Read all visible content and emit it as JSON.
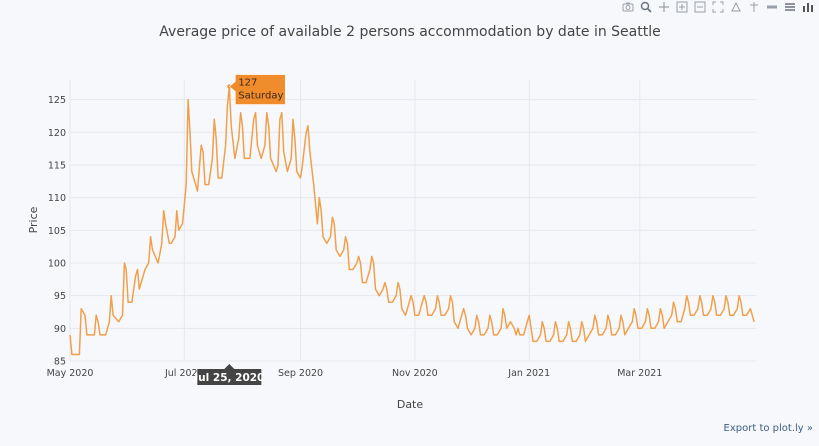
{
  "toolbar": {
    "icons": [
      "camera-icon",
      "zoom-icon",
      "pan-icon",
      "zoom-in-icon",
      "zoom-out-icon",
      "autoscale-icon",
      "reset-axes-icon",
      "spike-lines-icon",
      "hover-closest-icon",
      "hover-compare-icon",
      "plotly-logo-icon"
    ]
  },
  "export_label": "Export to plot.ly »",
  "colors": {
    "line": "#f0a04b",
    "hover_box": "#f08c2b",
    "hover_date_bg": "#444444",
    "background": "#f7f8fb"
  },
  "chart_data": {
    "type": "line",
    "title": "Average price of available 2 persons accommodation by date in Seattle",
    "xlabel": "Date",
    "ylabel": "Price",
    "x_range": [
      "2020-05-01",
      "2021-05-02"
    ],
    "ylim": [
      85,
      128
    ],
    "y_ticks": [
      85,
      90,
      95,
      100,
      105,
      110,
      115,
      120,
      125
    ],
    "x_ticks": [
      {
        "date": "2020-05-01",
        "label": "May 2020"
      },
      {
        "date": "2020-07-01",
        "label": "Jul 2020"
      },
      {
        "date": "2020-09-01",
        "label": "Sep 2020"
      },
      {
        "date": "2020-11-01",
        "label": "Nov 2020"
      },
      {
        "date": "2021-01-01",
        "label": "Jan 2021"
      },
      {
        "date": "2021-03-01",
        "label": "Mar 2021"
      }
    ],
    "grid": true,
    "series": [
      {
        "points": [
          [
            "2020-05-01",
            89
          ],
          [
            "2020-05-02",
            86
          ],
          [
            "2020-05-04",
            86
          ],
          [
            "2020-05-06",
            86
          ],
          [
            "2020-05-07",
            93
          ],
          [
            "2020-05-09",
            92
          ],
          [
            "2020-05-10",
            89
          ],
          [
            "2020-05-12",
            89
          ],
          [
            "2020-05-14",
            89
          ],
          [
            "2020-05-15",
            92
          ],
          [
            "2020-05-16",
            91
          ],
          [
            "2020-05-17",
            89
          ],
          [
            "2020-05-20",
            89
          ],
          [
            "2020-05-22",
            91
          ],
          [
            "2020-05-23",
            95
          ],
          [
            "2020-05-24",
            92
          ],
          [
            "2020-05-27",
            91
          ],
          [
            "2020-05-29",
            92
          ],
          [
            "2020-05-30",
            100
          ],
          [
            "2020-05-31",
            99
          ],
          [
            "2020-06-01",
            94
          ],
          [
            "2020-06-03",
            94
          ],
          [
            "2020-06-05",
            98
          ],
          [
            "2020-06-06",
            99
          ],
          [
            "2020-06-07",
            96
          ],
          [
            "2020-06-10",
            99
          ],
          [
            "2020-06-12",
            100
          ],
          [
            "2020-06-13",
            104
          ],
          [
            "2020-06-14",
            102
          ],
          [
            "2020-06-17",
            100
          ],
          [
            "2020-06-19",
            103
          ],
          [
            "2020-06-20",
            108
          ],
          [
            "2020-06-21",
            106
          ],
          [
            "2020-06-23",
            103
          ],
          [
            "2020-06-24",
            103
          ],
          [
            "2020-06-26",
            104
          ],
          [
            "2020-06-27",
            108
          ],
          [
            "2020-06-28",
            105
          ],
          [
            "2020-06-30",
            106
          ],
          [
            "2020-07-02",
            112
          ],
          [
            "2020-07-03",
            125
          ],
          [
            "2020-07-04",
            120
          ],
          [
            "2020-07-05",
            114
          ],
          [
            "2020-07-07",
            112
          ],
          [
            "2020-07-08",
            111
          ],
          [
            "2020-07-10",
            118
          ],
          [
            "2020-07-11",
            117
          ],
          [
            "2020-07-12",
            112
          ],
          [
            "2020-07-14",
            112
          ],
          [
            "2020-07-16",
            116
          ],
          [
            "2020-07-17",
            122
          ],
          [
            "2020-07-18",
            119
          ],
          [
            "2020-07-19",
            113
          ],
          [
            "2020-07-21",
            113
          ],
          [
            "2020-07-23",
            118
          ],
          [
            "2020-07-24",
            124
          ],
          [
            "2020-07-25",
            127
          ],
          [
            "2020-07-26",
            121
          ],
          [
            "2020-07-28",
            116
          ],
          [
            "2020-07-30",
            119
          ],
          [
            "2020-07-31",
            123
          ],
          [
            "2020-08-01",
            121
          ],
          [
            "2020-08-02",
            116
          ],
          [
            "2020-08-05",
            116
          ],
          [
            "2020-08-07",
            122
          ],
          [
            "2020-08-08",
            123
          ],
          [
            "2020-08-09",
            118
          ],
          [
            "2020-08-11",
            116
          ],
          [
            "2020-08-13",
            118
          ],
          [
            "2020-08-14",
            123
          ],
          [
            "2020-08-15",
            121
          ],
          [
            "2020-08-16",
            116
          ],
          [
            "2020-08-19",
            114
          ],
          [
            "2020-08-20",
            115
          ],
          [
            "2020-08-21",
            122
          ],
          [
            "2020-08-22",
            123
          ],
          [
            "2020-08-23",
            117
          ],
          [
            "2020-08-25",
            114
          ],
          [
            "2020-08-27",
            116
          ],
          [
            "2020-08-28",
            122
          ],
          [
            "2020-08-29",
            119
          ],
          [
            "2020-08-30",
            114
          ],
          [
            "2020-09-01",
            113
          ],
          [
            "2020-09-02",
            115
          ],
          [
            "2020-09-04",
            120
          ],
          [
            "2020-09-05",
            121
          ],
          [
            "2020-09-06",
            117
          ],
          [
            "2020-09-08",
            112
          ],
          [
            "2020-09-10",
            106
          ],
          [
            "2020-09-11",
            110
          ],
          [
            "2020-09-12",
            108
          ],
          [
            "2020-09-13",
            104
          ],
          [
            "2020-09-15",
            103
          ],
          [
            "2020-09-17",
            104
          ],
          [
            "2020-09-18",
            107
          ],
          [
            "2020-09-19",
            106
          ],
          [
            "2020-09-20",
            102
          ],
          [
            "2020-09-22",
            101
          ],
          [
            "2020-09-24",
            102
          ],
          [
            "2020-09-25",
            104
          ],
          [
            "2020-09-26",
            103
          ],
          [
            "2020-09-27",
            99
          ],
          [
            "2020-09-29",
            99
          ],
          [
            "2020-10-01",
            100
          ],
          [
            "2020-10-02",
            101
          ],
          [
            "2020-10-03",
            100
          ],
          [
            "2020-10-04",
            97
          ],
          [
            "2020-10-06",
            97
          ],
          [
            "2020-10-08",
            99
          ],
          [
            "2020-10-09",
            101
          ],
          [
            "2020-10-10",
            100
          ],
          [
            "2020-10-11",
            96
          ],
          [
            "2020-10-13",
            95
          ],
          [
            "2020-10-15",
            96
          ],
          [
            "2020-10-16",
            97
          ],
          [
            "2020-10-17",
            96
          ],
          [
            "2020-10-18",
            94
          ],
          [
            "2020-10-20",
            94
          ],
          [
            "2020-10-22",
            95
          ],
          [
            "2020-10-23",
            97
          ],
          [
            "2020-10-24",
            96
          ],
          [
            "2020-10-25",
            93
          ],
          [
            "2020-10-27",
            92
          ],
          [
            "2020-10-29",
            94
          ],
          [
            "2020-10-30",
            95
          ],
          [
            "2020-10-31",
            94
          ],
          [
            "2020-11-01",
            92
          ],
          [
            "2020-11-03",
            92
          ],
          [
            "2020-11-05",
            94
          ],
          [
            "2020-11-06",
            95
          ],
          [
            "2020-11-07",
            94
          ],
          [
            "2020-11-08",
            92
          ],
          [
            "2020-11-10",
            92
          ],
          [
            "2020-11-12",
            93
          ],
          [
            "2020-11-13",
            95
          ],
          [
            "2020-11-14",
            94
          ],
          [
            "2020-11-15",
            92
          ],
          [
            "2020-11-17",
            92
          ],
          [
            "2020-11-19",
            93
          ],
          [
            "2020-11-20",
            95
          ],
          [
            "2020-11-21",
            94
          ],
          [
            "2020-11-22",
            91
          ],
          [
            "2020-11-24",
            90
          ],
          [
            "2020-11-26",
            92
          ],
          [
            "2020-11-27",
            93
          ],
          [
            "2020-11-28",
            92
          ],
          [
            "2020-11-29",
            90
          ],
          [
            "2020-12-01",
            89
          ],
          [
            "2020-12-03",
            90
          ],
          [
            "2020-12-04",
            92
          ],
          [
            "2020-12-05",
            91
          ],
          [
            "2020-12-06",
            89
          ],
          [
            "2020-12-08",
            89
          ],
          [
            "2020-12-10",
            90
          ],
          [
            "2020-12-11",
            92
          ],
          [
            "2020-12-12",
            91
          ],
          [
            "2020-12-13",
            89
          ],
          [
            "2020-12-15",
            89
          ],
          [
            "2020-12-17",
            90
          ],
          [
            "2020-12-18",
            93
          ],
          [
            "2020-12-19",
            92
          ],
          [
            "2020-12-20",
            90
          ],
          [
            "2020-12-22",
            91
          ],
          [
            "2020-12-24",
            90
          ],
          [
            "2020-12-25",
            89
          ],
          [
            "2020-12-26",
            90
          ],
          [
            "2020-12-27",
            89
          ],
          [
            "2020-12-29",
            89
          ],
          [
            "2020-12-31",
            91
          ],
          [
            "2021-01-01",
            92
          ],
          [
            "2021-01-02",
            90
          ],
          [
            "2021-01-03",
            88
          ],
          [
            "2021-01-05",
            88
          ],
          [
            "2021-01-07",
            89
          ],
          [
            "2021-01-08",
            91
          ],
          [
            "2021-01-09",
            90
          ],
          [
            "2021-01-10",
            88
          ],
          [
            "2021-01-12",
            88
          ],
          [
            "2021-01-14",
            89
          ],
          [
            "2021-01-15",
            91
          ],
          [
            "2021-01-16",
            90
          ],
          [
            "2021-01-17",
            88
          ],
          [
            "2021-01-19",
            88
          ],
          [
            "2021-01-21",
            89
          ],
          [
            "2021-01-22",
            91
          ],
          [
            "2021-01-23",
            90
          ],
          [
            "2021-01-24",
            88
          ],
          [
            "2021-01-26",
            88
          ],
          [
            "2021-01-28",
            89
          ],
          [
            "2021-01-29",
            91
          ],
          [
            "2021-01-30",
            90
          ],
          [
            "2021-01-31",
            88
          ],
          [
            "2021-02-02",
            89
          ],
          [
            "2021-02-04",
            90
          ],
          [
            "2021-02-05",
            92
          ],
          [
            "2021-02-06",
            91
          ],
          [
            "2021-02-07",
            89
          ],
          [
            "2021-02-09",
            89
          ],
          [
            "2021-02-11",
            90
          ],
          [
            "2021-02-12",
            92
          ],
          [
            "2021-02-13",
            91
          ],
          [
            "2021-02-14",
            89
          ],
          [
            "2021-02-16",
            89
          ],
          [
            "2021-02-18",
            90
          ],
          [
            "2021-02-19",
            92
          ],
          [
            "2021-02-20",
            91
          ],
          [
            "2021-02-21",
            89
          ],
          [
            "2021-02-23",
            90
          ],
          [
            "2021-02-25",
            91
          ],
          [
            "2021-02-26",
            93
          ],
          [
            "2021-02-27",
            92
          ],
          [
            "2021-02-28",
            90
          ],
          [
            "2021-03-02",
            90
          ],
          [
            "2021-03-04",
            91
          ],
          [
            "2021-03-05",
            93
          ],
          [
            "2021-03-06",
            92
          ],
          [
            "2021-03-07",
            90
          ],
          [
            "2021-03-09",
            90
          ],
          [
            "2021-03-11",
            91
          ],
          [
            "2021-03-12",
            93
          ],
          [
            "2021-03-13",
            92
          ],
          [
            "2021-03-14",
            90
          ],
          [
            "2021-03-16",
            91
          ],
          [
            "2021-03-18",
            92
          ],
          [
            "2021-03-19",
            94
          ],
          [
            "2021-03-20",
            93
          ],
          [
            "2021-03-21",
            91
          ],
          [
            "2021-03-23",
            91
          ],
          [
            "2021-03-25",
            93
          ],
          [
            "2021-03-26",
            95
          ],
          [
            "2021-03-27",
            94
          ],
          [
            "2021-03-28",
            92
          ],
          [
            "2021-03-30",
            92
          ],
          [
            "2021-04-01",
            93
          ],
          [
            "2021-04-02",
            95
          ],
          [
            "2021-04-03",
            94
          ],
          [
            "2021-04-04",
            92
          ],
          [
            "2021-04-06",
            92
          ],
          [
            "2021-04-08",
            93
          ],
          [
            "2021-04-09",
            95
          ],
          [
            "2021-04-10",
            94
          ],
          [
            "2021-04-11",
            92
          ],
          [
            "2021-04-13",
            92
          ],
          [
            "2021-04-15",
            93
          ],
          [
            "2021-04-16",
            95
          ],
          [
            "2021-04-17",
            94
          ],
          [
            "2021-04-18",
            92
          ],
          [
            "2021-04-20",
            92
          ],
          [
            "2021-04-22",
            93
          ],
          [
            "2021-04-23",
            95
          ],
          [
            "2021-04-24",
            94
          ],
          [
            "2021-04-25",
            92
          ],
          [
            "2021-04-27",
            92
          ],
          [
            "2021-04-29",
            93
          ],
          [
            "2021-04-30",
            92
          ],
          [
            "2021-05-01",
            91
          ]
        ]
      }
    ],
    "hover": {
      "date": "2020-07-25",
      "value": 127,
      "value_label": "127",
      "day_label": "Saturday",
      "date_label": "Jul 25, 2020"
    }
  }
}
